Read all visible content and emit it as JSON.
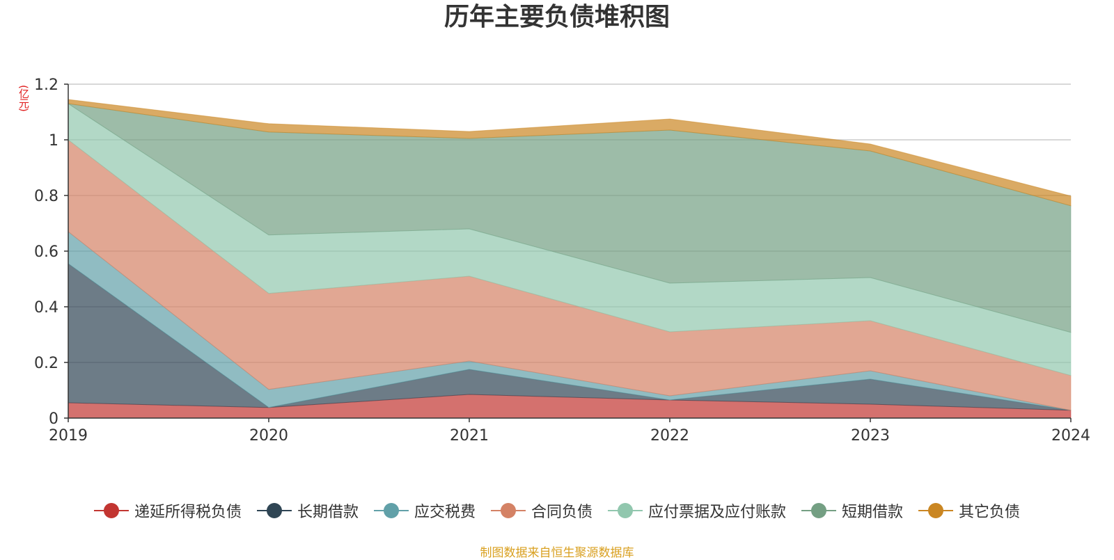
{
  "chart_data": {
    "type": "area",
    "stacked": true,
    "title": "历年主要负债堆积图",
    "unit_label": "(亿元)",
    "x": [
      "2019",
      "2020",
      "2021",
      "2022",
      "2023",
      "2024"
    ],
    "ylim": [
      0,
      1.2
    ],
    "yticks": [
      "0",
      "0.2",
      "0.4",
      "0.6",
      "0.8",
      "1",
      "1.2"
    ],
    "grid": true,
    "legend_position": "bottom",
    "series": [
      {
        "name": "递延所得税负债",
        "color": "#c23531",
        "values": [
          0.055,
          0.038,
          0.085,
          0.065,
          0.05,
          0.028
        ]
      },
      {
        "name": "长期借款",
        "color": "#2f4554",
        "values": [
          0.5,
          0.0,
          0.09,
          0.0,
          0.09,
          0.0
        ]
      },
      {
        "name": "应交税费",
        "color": "#61a0a8",
        "values": [
          0.115,
          0.065,
          0.03,
          0.015,
          0.03,
          0.0
        ]
      },
      {
        "name": "合同负债",
        "color": "#d48265",
        "values": [
          0.33,
          0.345,
          0.305,
          0.23,
          0.18,
          0.125
        ]
      },
      {
        "name": "应付票据及应付账款",
        "color": "#91c7ae",
        "values": [
          0.13,
          0.21,
          0.17,
          0.175,
          0.155,
          0.155
        ]
      },
      {
        "name": "短期借款",
        "color": "#749f83",
        "values": [
          0.0,
          0.37,
          0.325,
          0.55,
          0.455,
          0.455
        ]
      },
      {
        "name": "其它负债",
        "color": "#ca8622",
        "values": [
          0.015,
          0.03,
          0.025,
          0.04,
          0.025,
          0.035
        ]
      }
    ]
  },
  "source_note": "制图数据来自恒生聚源数据库"
}
